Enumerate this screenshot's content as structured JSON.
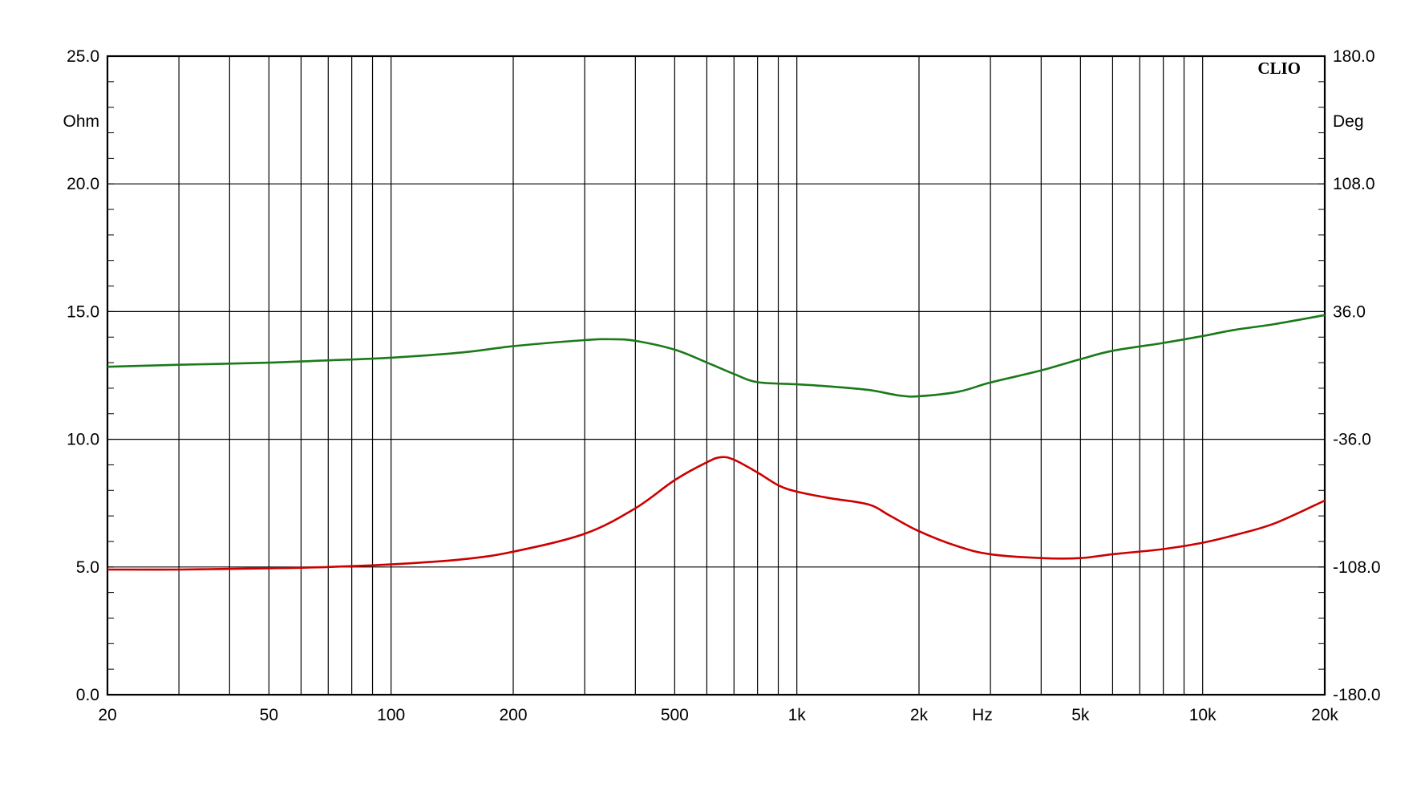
{
  "chart_data": {
    "type": "line",
    "brand": "CLIO",
    "x_scale": "log",
    "xlim": [
      20,
      20000
    ],
    "x_unit_label": "Hz",
    "x_tick_labels": [
      {
        "value": 20,
        "label": "20"
      },
      {
        "value": 50,
        "label": "50"
      },
      {
        "value": 100,
        "label": "100"
      },
      {
        "value": 200,
        "label": "200"
      },
      {
        "value": 500,
        "label": "500"
      },
      {
        "value": 1000,
        "label": "1k"
      },
      {
        "value": 2000,
        "label": "2k"
      },
      {
        "value": 5000,
        "label": "5k"
      },
      {
        "value": 10000,
        "label": "10k"
      },
      {
        "value": 20000,
        "label": "20k"
      }
    ],
    "y_left": {
      "unit": "Ohm",
      "lim": [
        0,
        25
      ],
      "ticks": [
        "0.0",
        "5.0",
        "10.0",
        "15.0",
        "20.0",
        "25.0"
      ]
    },
    "y_right": {
      "unit": "Deg",
      "lim": [
        -180,
        180
      ],
      "ticks": [
        "-180.0",
        "-108.0",
        "-36.0",
        "36.0",
        "108.0",
        "180.0"
      ]
    },
    "grid": true,
    "series": [
      {
        "axis": "left",
        "color": "#cc0000",
        "points": [
          [
            20,
            4.9
          ],
          [
            30,
            4.9
          ],
          [
            50,
            4.95
          ],
          [
            70,
            5.0
          ],
          [
            100,
            5.1
          ],
          [
            150,
            5.3
          ],
          [
            200,
            5.6
          ],
          [
            300,
            6.3
          ],
          [
            400,
            7.3
          ],
          [
            500,
            8.4
          ],
          [
            600,
            9.1
          ],
          [
            650,
            9.3
          ],
          [
            700,
            9.2
          ],
          [
            800,
            8.7
          ],
          [
            900,
            8.2
          ],
          [
            1000,
            7.95
          ],
          [
            1200,
            7.7
          ],
          [
            1500,
            7.45
          ],
          [
            1700,
            7.0
          ],
          [
            2000,
            6.4
          ],
          [
            2500,
            5.8
          ],
          [
            3000,
            5.5
          ],
          [
            4000,
            5.35
          ],
          [
            5000,
            5.35
          ],
          [
            6000,
            5.5
          ],
          [
            8000,
            5.7
          ],
          [
            10000,
            5.95
          ],
          [
            12000,
            6.25
          ],
          [
            15000,
            6.7
          ],
          [
            20000,
            7.6
          ]
        ]
      },
      {
        "axis": "right",
        "color": "#1a7a1a",
        "points": [
          [
            20,
            4.9
          ],
          [
            30,
            6.0
          ],
          [
            50,
            7.2
          ],
          [
            70,
            8.5
          ],
          [
            100,
            10.0
          ],
          [
            150,
            13.0
          ],
          [
            200,
            16.5
          ],
          [
            300,
            19.9
          ],
          [
            350,
            20.4
          ],
          [
            400,
            19.5
          ],
          [
            500,
            14.5
          ],
          [
            600,
            7.3
          ],
          [
            700,
            0.8
          ],
          [
            800,
            -3.8
          ],
          [
            1000,
            -5.0
          ],
          [
            1200,
            -6.2
          ],
          [
            1500,
            -8.2
          ],
          [
            1800,
            -11.4
          ],
          [
            2000,
            -11.7
          ],
          [
            2500,
            -9.2
          ],
          [
            3000,
            -4.0
          ],
          [
            4000,
            2.8
          ],
          [
            5000,
            9.2
          ],
          [
            6000,
            13.9
          ],
          [
            8000,
            18.3
          ],
          [
            10000,
            22.2
          ],
          [
            12000,
            25.7
          ],
          [
            15000,
            28.9
          ],
          [
            20000,
            34.0
          ]
        ]
      }
    ]
  }
}
